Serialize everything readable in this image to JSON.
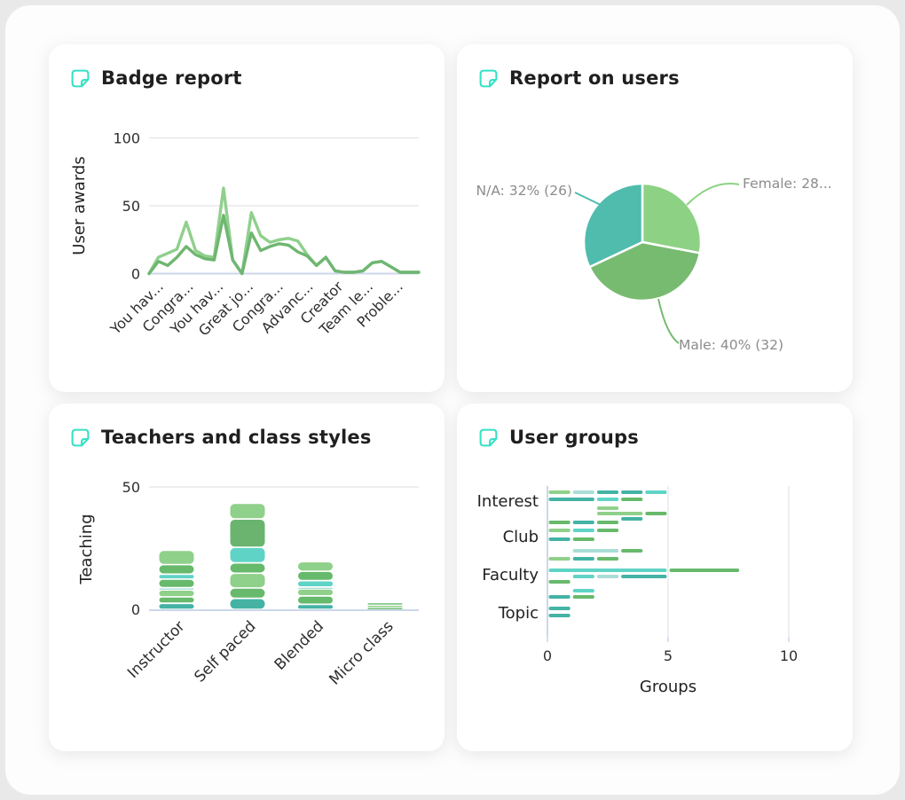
{
  "page": {
    "background": "#e9e9e9",
    "surface": "#ffffff",
    "icon_color": "#35e1c5",
    "title_color": "#1f1f1f",
    "label_gray": "#8c8c8c",
    "axis_line_color": "#ccd7ea",
    "grid_color": "#e4e4e4"
  },
  "palette": {
    "lightgreen": "#8fd08a",
    "green": "#67b96b",
    "green2": "#6ab470",
    "cyan": "#5fd4c6",
    "teal": "#44b3a4",
    "paleteal": "#a9ded6"
  },
  "cards": [
    {
      "title": "Badge report"
    },
    {
      "title": "Report on users"
    },
    {
      "title": "Teachers and class styles"
    },
    {
      "title": "User groups"
    }
  ],
  "chart_data": [
    {
      "type": "line",
      "title": "Badge report",
      "ylabel": "User awards",
      "yticks": [
        0,
        50,
        100
      ],
      "ylim": [
        0,
        100
      ],
      "grid": true,
      "xticklabels": [
        "You hav...",
        "Congra...",
        "You hav...",
        "Great jo...",
        "Congra...",
        "Advanc...",
        "Creator",
        "Team le...",
        "Proble..."
      ],
      "series": [
        {
          "name": "awards-light",
          "color": "#8fd08c",
          "values": [
            0,
            12,
            15,
            18,
            38,
            17,
            13,
            12,
            63,
            10,
            0,
            45,
            28,
            23,
            25,
            26,
            24,
            14,
            6,
            12,
            2,
            1,
            1,
            2,
            8,
            9,
            5,
            1,
            1,
            1
          ]
        },
        {
          "name": "awards-dark",
          "color": "#6fb671",
          "values": [
            0,
            9,
            6,
            12,
            20,
            14,
            11,
            10,
            43,
            10,
            0,
            30,
            17,
            20,
            22,
            21,
            16,
            13,
            6,
            12,
            2,
            1,
            1,
            2,
            8,
            9,
            5,
            1,
            1,
            1
          ]
        }
      ]
    },
    {
      "type": "pie",
      "title": "Report on users",
      "slices": [
        {
          "label": "Female: 28...",
          "value": 28,
          "color": "#8dd284"
        },
        {
          "label": "Male: 40% (32)",
          "value": 40,
          "color": "#77bb70"
        },
        {
          "label": "N/A: 32% (26)",
          "value": 32,
          "color": "#4fbcad"
        }
      ],
      "label_color": "#8c8c8c"
    },
    {
      "type": "bar",
      "stacked": true,
      "title": "Teachers and class styles",
      "ylabel": "Teaching",
      "yticks": [
        0,
        50
      ],
      "ylim": [
        0,
        50
      ],
      "categories": [
        "Instructor",
        "Self paced",
        "Blended",
        "Micro class"
      ],
      "bars": [
        {
          "category": "Instructor",
          "total": 24,
          "segments": [
            [
              2.5,
              "teal"
            ],
            [
              2.6,
              "green"
            ],
            [
              2.8,
              "lightgreen"
            ],
            [
              0.9,
              "paleteal"
            ],
            [
              3.5,
              "green"
            ],
            [
              2.0,
              "cyan"
            ],
            [
              3.9,
              "green"
            ],
            [
              5.8,
              "lightgreen"
            ]
          ]
        },
        {
          "category": "Self paced",
          "total": 43,
          "segments": [
            [
              4.5,
              "teal"
            ],
            [
              4.2,
              "green"
            ],
            [
              6.0,
              "lightgreen"
            ],
            [
              4.2,
              "green"
            ],
            [
              6.3,
              "cyan"
            ],
            [
              11.5,
              "green2"
            ],
            [
              6.4,
              "lightgreen"
            ]
          ]
        },
        {
          "category": "Blended",
          "total": 19.4,
          "segments": [
            [
              2.1,
              "teal"
            ],
            [
              3.4,
              "green"
            ],
            [
              2.8,
              "lightgreen"
            ],
            [
              0.8,
              "paleteal"
            ],
            [
              2.6,
              "cyan"
            ],
            [
              3.8,
              "green"
            ],
            [
              3.9,
              "lightgreen"
            ]
          ]
        },
        {
          "category": "Micro class",
          "total": 2.8,
          "segments": [
            [
              0.9,
              "green"
            ],
            [
              0.9,
              "lightgreen"
            ],
            [
              1.0,
              "green"
            ]
          ]
        }
      ]
    },
    {
      "type": "bar-horizontal",
      "title": "User groups",
      "xlabel": "Groups",
      "xticks": [
        0,
        5,
        10
      ],
      "xlim": [
        0,
        10
      ],
      "categories": [
        "Interest",
        "Club",
        "Faculty",
        "Topic"
      ],
      "rows": [
        {
          "y": 40,
          "segments": [
            [
              0,
              1,
              "lightgreen"
            ],
            [
              1,
              2,
              "paleteal"
            ],
            [
              2,
              3,
              "teal"
            ],
            [
              3,
              4,
              "teal"
            ],
            [
              4,
              5,
              "cyan"
            ]
          ]
        },
        {
          "y": 48,
          "segments": [
            [
              0,
              2,
              "teal"
            ],
            [
              2,
              3,
              "cyan"
            ],
            [
              3,
              4,
              "green"
            ]
          ]
        },
        {
          "y": 58,
          "segments": [
            [
              2,
              3,
              "lightgreen"
            ]
          ]
        },
        {
          "y": 64,
          "segments": [
            [
              2,
              4,
              "lightgreen"
            ],
            [
              4,
              5,
              "green"
            ]
          ]
        },
        {
          "y": 70,
          "segments": [
            [
              3,
              4,
              "teal"
            ]
          ]
        },
        {
          "y": 74,
          "segments": [
            [
              0,
              1,
              "green"
            ],
            [
              1,
              2,
              "teal"
            ],
            [
              2,
              3,
              "green"
            ]
          ]
        },
        {
          "y": 83,
          "segments": [
            [
              0,
              1,
              "lightgreen"
            ],
            [
              1,
              2,
              "cyan"
            ],
            [
              2,
              3,
              "green"
            ]
          ]
        },
        {
          "y": 93,
          "segments": [
            [
              0,
              1,
              "teal"
            ],
            [
              1,
              2,
              "green"
            ]
          ]
        },
        {
          "y": 106,
          "segments": [
            [
              1,
              3,
              "paleteal"
            ],
            [
              3,
              4,
              "green"
            ]
          ]
        },
        {
          "y": 115,
          "segments": [
            [
              0,
              1,
              "lightgreen"
            ],
            [
              1,
              2,
              "teal"
            ],
            [
              2,
              3,
              "green"
            ]
          ]
        },
        {
          "y": 128,
          "segments": [
            [
              0,
              5,
              "cyan"
            ],
            [
              5,
              8,
              "green"
            ]
          ]
        },
        {
          "y": 135,
          "segments": [
            [
              1,
              2,
              "cyan"
            ],
            [
              2,
              3,
              "paleteal"
            ],
            [
              3,
              5,
              "teal"
            ]
          ]
        },
        {
          "y": 141,
          "segments": [
            [
              0,
              1,
              "green"
            ]
          ]
        },
        {
          "y": 151,
          "segments": [
            [
              1,
              2,
              "cyan"
            ]
          ]
        },
        {
          "y": 158,
          "segments": [
            [
              0,
              1,
              "teal"
            ],
            [
              1,
              2,
              "green"
            ]
          ]
        },
        {
          "y": 171,
          "segments": [
            [
              0,
              1,
              "teal"
            ]
          ]
        },
        {
          "y": 179,
          "segments": [
            [
              0,
              1,
              "teal"
            ]
          ]
        }
      ]
    }
  ]
}
